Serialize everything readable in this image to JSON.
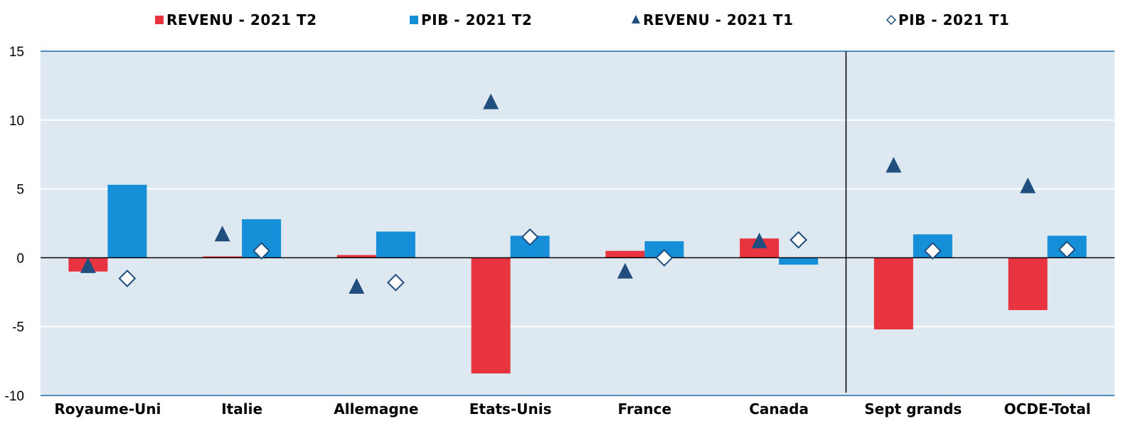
{
  "chart_data": {
    "type": "bar",
    "categories": [
      "Royaume-Uni",
      "Italie",
      "Allemagne",
      "Etats-Unis",
      "France",
      "Canada",
      "Sept grands",
      "OCDE-Total"
    ],
    "series": [
      {
        "name": "REVENU - 2021 T2",
        "kind": "bar",
        "color": "#e8343f",
        "values": [
          -1.0,
          0.1,
          0.2,
          -8.4,
          0.5,
          1.4,
          -5.2,
          -3.8
        ]
      },
      {
        "name": "PIB - 2021 T2",
        "kind": "bar",
        "color": "#158fd8",
        "values": [
          5.3,
          2.8,
          1.9,
          1.6,
          1.2,
          -0.5,
          1.7,
          1.6
        ]
      },
      {
        "name": "REVENU - 2021 T1",
        "kind": "marker-triangle",
        "color": "#1f4e7f",
        "values": [
          -0.6,
          1.7,
          -2.1,
          11.3,
          -1.0,
          1.2,
          6.7,
          5.2
        ]
      },
      {
        "name": "PIB - 2021 T1",
        "kind": "marker-diamond",
        "color": "#1f4e7f",
        "values": [
          -1.5,
          0.5,
          -1.8,
          1.5,
          0.0,
          1.3,
          0.5,
          0.6
        ]
      }
    ],
    "ylim": [
      -10,
      15
    ],
    "yticks": [
      "-10",
      "-5",
      "0",
      "5",
      "10",
      "15"
    ],
    "grid": true,
    "legend_position": "top",
    "separator_after_category": "Canada",
    "plot_background": "#dde8f0",
    "grid_color": "#ffffff",
    "axis_line_color": "#1f6aa5"
  }
}
